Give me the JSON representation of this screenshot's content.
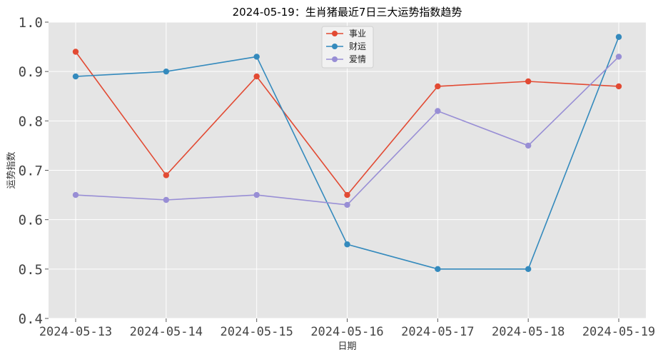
{
  "chart_data": {
    "type": "line",
    "title": "2024-05-19：生肖猪最近7日三大运势指数趋势",
    "xlabel": "日期",
    "ylabel": "运势指数",
    "ylim": [
      0.4,
      1.0
    ],
    "yticks": [
      "0.4",
      "0.5",
      "0.6",
      "0.7",
      "0.8",
      "0.9",
      "1.0"
    ],
    "grid": true,
    "legend_position": "top-center",
    "categories": [
      "2024-05-13",
      "2024-05-14",
      "2024-05-15",
      "2024-05-16",
      "2024-05-17",
      "2024-05-18",
      "2024-05-19"
    ],
    "series": [
      {
        "name": "事业",
        "color": "#E24A33",
        "values": [
          0.94,
          0.69,
          0.89,
          0.65,
          0.87,
          0.88,
          0.87
        ]
      },
      {
        "name": "财运",
        "color": "#348ABD",
        "values": [
          0.89,
          0.9,
          0.93,
          0.55,
          0.5,
          0.5,
          0.97
        ]
      },
      {
        "name": "爱情",
        "color": "#988ED5",
        "values": [
          0.65,
          0.64,
          0.65,
          0.63,
          0.82,
          0.75,
          0.93
        ]
      }
    ]
  }
}
